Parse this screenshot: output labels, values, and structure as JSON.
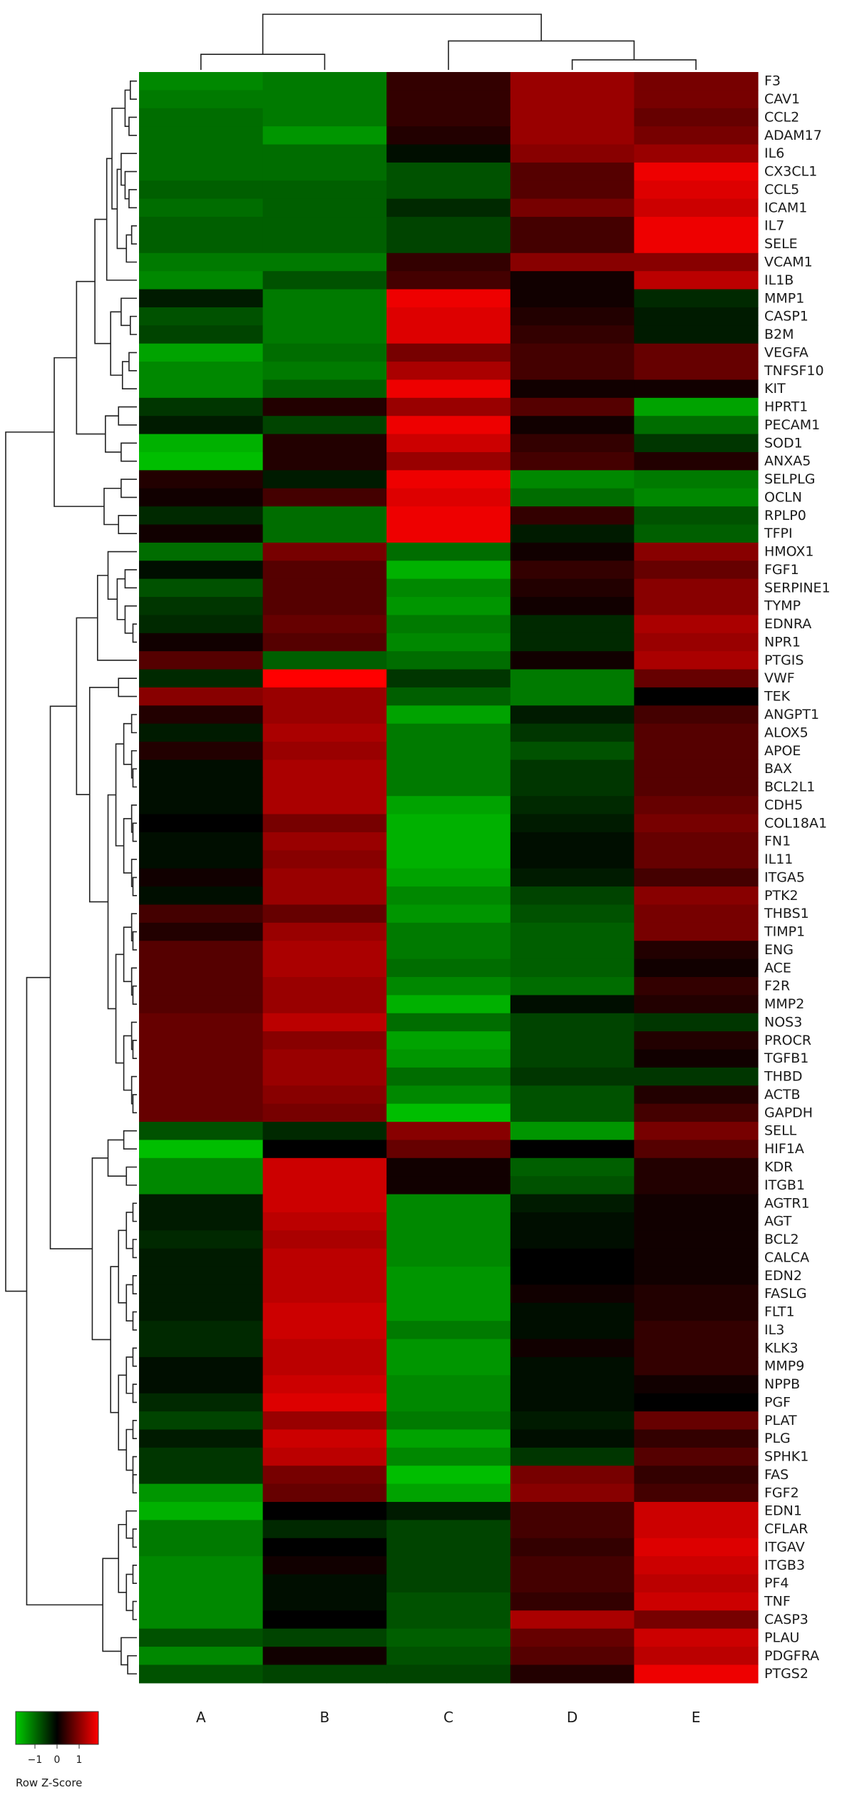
{
  "chart_data": {
    "type": "heatmap",
    "title": "",
    "columns": [
      "A",
      "B",
      "C",
      "D",
      "E"
    ],
    "rows": [
      "F3",
      "CAV1",
      "CCL2",
      "ADAM17",
      "IL6",
      "CX3CL1",
      "CCL5",
      "ICAM1",
      "IL7",
      "SELE",
      "VCAM1",
      "IL1B",
      "MMP1",
      "CASP1",
      "B2M",
      "VEGFA",
      "TNFSF10",
      "KIT",
      "HPRT1",
      "PECAM1",
      "SOD1",
      "ANXA5",
      "SELPLG",
      "OCLN",
      "RPLP0",
      "TFPI",
      "HMOX1",
      "FGF1",
      "SERPINE1",
      "TYMP",
      "EDNRA",
      "NPR1",
      "PTGIS",
      "VWF",
      "TEK",
      "ANGPT1",
      "ALOX5",
      "APOE",
      "BAX",
      "BCL2L1",
      "CDH5",
      "COL18A1",
      "FN1",
      "IL11",
      "ITGA5",
      "PTK2",
      "THBS1",
      "TIMP1",
      "ENG",
      "ACE",
      "F2R",
      "MMP2",
      "NOS3",
      "PROCR",
      "TGFB1",
      "THBD",
      "ACTB",
      "GAPDH",
      "SELL",
      "HIF1A",
      "KDR",
      "ITGB1",
      "AGTR1",
      "AGT",
      "BCL2",
      "CALCA",
      "EDN2",
      "FASLG",
      "FLT1",
      "IL3",
      "KLK3",
      "MMP9",
      "NPPB",
      "PGF",
      "PLAT",
      "PLG",
      "SPHK1",
      "FAS",
      "FGF2",
      "EDN1",
      "CFLAR",
      "ITGAV",
      "ITGB3",
      "PF4",
      "TNF",
      "CASP3",
      "PLAU",
      "PDGFRA",
      "PTGS2"
    ],
    "values": [
      [
        -1.0,
        -0.9,
        0.3,
        0.9,
        0.7
      ],
      [
        -0.9,
        -0.9,
        0.3,
        0.9,
        0.7
      ],
      [
        -0.8,
        -0.9,
        0.3,
        0.9,
        0.6
      ],
      [
        -0.8,
        -1.1,
        0.2,
        0.9,
        0.7
      ],
      [
        -0.8,
        -0.8,
        -0.1,
        0.8,
        0.9
      ],
      [
        -0.8,
        -0.8,
        -0.6,
        0.5,
        1.4
      ],
      [
        -0.7,
        -0.7,
        -0.6,
        0.5,
        1.3
      ],
      [
        -0.8,
        -0.7,
        -0.3,
        0.7,
        1.2
      ],
      [
        -0.7,
        -0.7,
        -0.5,
        0.4,
        1.4
      ],
      [
        -0.7,
        -0.7,
        -0.5,
        0.4,
        1.4
      ],
      [
        -0.9,
        -0.9,
        0.3,
        0.8,
        0.8
      ],
      [
        -1.0,
        -0.6,
        0.4,
        0.1,
        1.1
      ],
      [
        -0.2,
        -0.9,
        1.4,
        0.1,
        -0.3
      ],
      [
        -0.6,
        -0.9,
        1.3,
        0.2,
        -0.2
      ],
      [
        -0.5,
        -0.9,
        1.3,
        0.3,
        -0.2
      ],
      [
        -1.2,
        -0.8,
        0.7,
        0.4,
        0.6
      ],
      [
        -1.0,
        -0.9,
        1.0,
        0.4,
        0.6
      ],
      [
        -1.0,
        -0.7,
        1.4,
        0.1,
        0.1
      ],
      [
        -0.4,
        0.2,
        0.9,
        0.5,
        -1.2
      ],
      [
        -0.2,
        -0.5,
        1.4,
        0.1,
        -0.8
      ],
      [
        -1.3,
        0.2,
        1.2,
        0.3,
        -0.4
      ],
      [
        -1.4,
        0.2,
        0.9,
        0.4,
        0.2
      ],
      [
        0.2,
        -0.2,
        1.4,
        -1.0,
        -0.9
      ],
      [
        0.1,
        0.4,
        1.3,
        -0.8,
        -1.0
      ],
      [
        -0.3,
        -0.8,
        1.4,
        0.3,
        -0.6
      ],
      [
        0.1,
        -0.8,
        1.4,
        -0.2,
        -0.7
      ],
      [
        -0.8,
        0.7,
        -0.8,
        0.1,
        0.8
      ],
      [
        -0.1,
        0.5,
        -1.3,
        0.3,
        0.6
      ],
      [
        -0.6,
        0.5,
        -1.0,
        0.2,
        0.8
      ],
      [
        -0.4,
        0.5,
        -1.1,
        0.1,
        0.8
      ],
      [
        -0.3,
        0.6,
        -0.9,
        -0.3,
        1.0
      ],
      [
        0.1,
        0.5,
        -1.0,
        -0.3,
        0.9
      ],
      [
        0.5,
        -0.7,
        -0.8,
        0.1,
        1.0
      ],
      [
        -0.3,
        1.5,
        -0.4,
        -0.9,
        0.6
      ],
      [
        0.8,
        0.9,
        -0.7,
        -0.9,
        0.0
      ],
      [
        0.2,
        0.9,
        -1.2,
        -0.2,
        0.4
      ],
      [
        -0.2,
        1.0,
        -0.9,
        -0.4,
        0.5
      ],
      [
        0.2,
        0.9,
        -0.9,
        -0.6,
        0.5
      ],
      [
        -0.1,
        1.0,
        -0.9,
        -0.4,
        0.5
      ],
      [
        -0.1,
        1.0,
        -0.9,
        -0.4,
        0.5
      ],
      [
        -0.1,
        1.0,
        -1.2,
        -0.3,
        0.6
      ],
      [
        0.0,
        0.7,
        -1.3,
        -0.2,
        0.7
      ],
      [
        -0.1,
        0.9,
        -1.3,
        -0.1,
        0.6
      ],
      [
        -0.1,
        0.8,
        -1.3,
        -0.1,
        0.6
      ],
      [
        0.1,
        0.9,
        -1.2,
        -0.2,
        0.4
      ],
      [
        -0.1,
        0.9,
        -1.0,
        -0.5,
        0.8
      ],
      [
        0.4,
        0.6,
        -1.1,
        -0.6,
        0.7
      ],
      [
        0.2,
        0.9,
        -0.9,
        -0.7,
        0.7
      ],
      [
        0.5,
        1.0,
        -0.9,
        -0.7,
        0.2
      ],
      [
        0.5,
        1.0,
        -0.8,
        -0.7,
        0.1
      ],
      [
        0.5,
        0.9,
        -1.0,
        -0.8,
        0.3
      ],
      [
        0.5,
        0.9,
        -1.3,
        -0.1,
        0.2
      ],
      [
        0.6,
        1.1,
        -0.8,
        -0.5,
        -0.4
      ],
      [
        0.6,
        0.8,
        -1.2,
        -0.5,
        0.2
      ],
      [
        0.6,
        0.9,
        -1.1,
        -0.5,
        0.1
      ],
      [
        0.6,
        0.9,
        -0.8,
        -0.4,
        -0.4
      ],
      [
        0.6,
        0.8,
        -1.0,
        -0.6,
        0.2
      ],
      [
        0.6,
        0.7,
        -1.4,
        -0.6,
        0.4
      ],
      [
        -0.6,
        -0.3,
        0.8,
        -1.1,
        0.7
      ],
      [
        -1.4,
        0.0,
        0.6,
        0.0,
        0.5
      ],
      [
        -1.0,
        1.2,
        0.1,
        -0.7,
        0.2
      ],
      [
        -1.0,
        1.2,
        0.1,
        -0.6,
        0.2
      ],
      [
        -0.2,
        1.2,
        -1.0,
        -0.2,
        0.1
      ],
      [
        -0.2,
        1.1,
        -1.0,
        -0.1,
        0.1
      ],
      [
        -0.3,
        1.0,
        -1.0,
        -0.1,
        0.1
      ],
      [
        -0.2,
        1.1,
        -1.0,
        0.0,
        0.1
      ],
      [
        -0.2,
        1.1,
        -1.1,
        0.0,
        0.1
      ],
      [
        -0.2,
        1.1,
        -1.1,
        0.1,
        0.2
      ],
      [
        -0.2,
        1.2,
        -1.1,
        -0.1,
        0.2
      ],
      [
        -0.3,
        1.2,
        -0.9,
        -0.1,
        0.3
      ],
      [
        -0.3,
        1.1,
        -1.1,
        0.1,
        0.3
      ],
      [
        -0.1,
        1.1,
        -1.1,
        -0.1,
        0.3
      ],
      [
        -0.1,
        1.2,
        -1.0,
        -0.1,
        0.1
      ],
      [
        -0.3,
        1.3,
        -1.0,
        -0.1,
        0.0
      ],
      [
        -0.5,
        0.9,
        -0.9,
        -0.2,
        0.6
      ],
      [
        -0.2,
        1.2,
        -1.2,
        -0.1,
        0.3
      ],
      [
        -0.4,
        1.1,
        -1.0,
        -0.4,
        0.5
      ],
      [
        -0.4,
        0.7,
        -1.4,
        0.7,
        0.3
      ],
      [
        -1.1,
        0.6,
        -1.2,
        0.8,
        0.4
      ],
      [
        -1.3,
        0.0,
        -0.2,
        0.4,
        1.2
      ],
      [
        -0.9,
        -0.3,
        -0.5,
        0.4,
        1.2
      ],
      [
        -0.9,
        0.0,
        -0.5,
        0.3,
        1.3
      ],
      [
        -1.0,
        0.1,
        -0.5,
        0.4,
        1.2
      ],
      [
        -1.0,
        -0.1,
        -0.5,
        0.4,
        1.1
      ],
      [
        -1.0,
        -0.1,
        -0.6,
        0.3,
        1.2
      ],
      [
        -1.0,
        0.0,
        -0.6,
        1.0,
        0.7
      ],
      [
        -0.6,
        -0.5,
        -0.7,
        0.6,
        1.2
      ],
      [
        -1.0,
        0.1,
        -0.6,
        0.5,
        1.1
      ],
      [
        -0.6,
        -0.5,
        -0.5,
        0.2,
        1.4
      ]
    ],
    "color_range": [
      -1.5,
      1.5
    ],
    "colors": {
      "low": "#00cc00",
      "mid": "#000000",
      "high": "#ff0000"
    },
    "legend": {
      "ticks": [
        "−1",
        "0",
        "1"
      ],
      "label": "Row Z-Score",
      "position": "bottom-left"
    },
    "dendrograms": {
      "columns": "top",
      "rows": "left"
    }
  }
}
